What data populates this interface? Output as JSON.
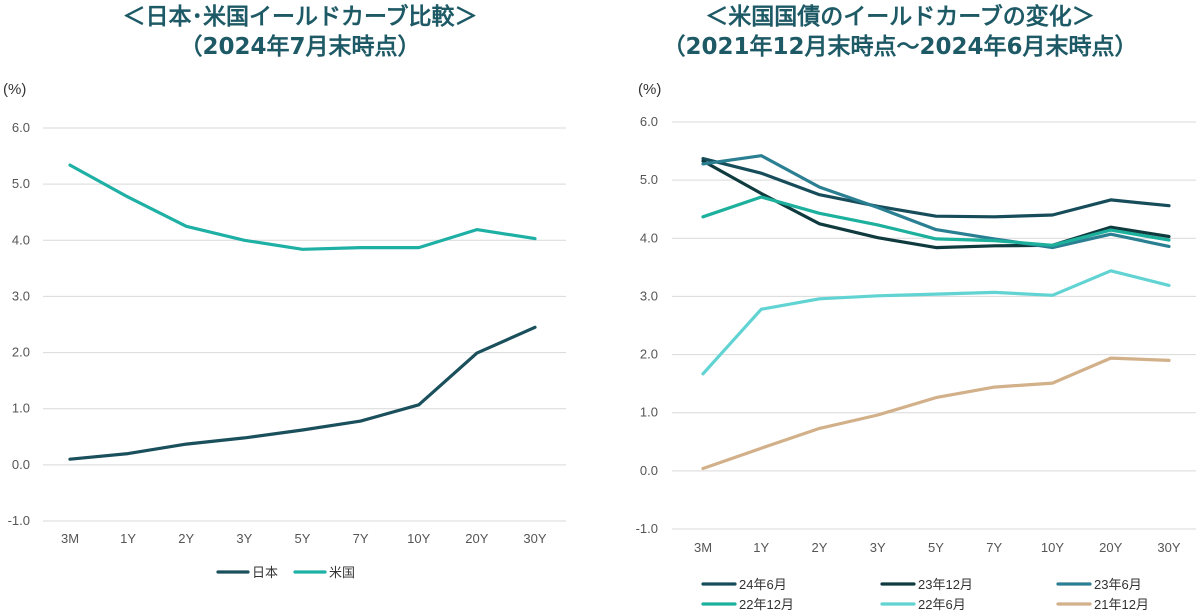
{
  "chart_data": [
    {
      "type": "line",
      "title_line1": "＜日本･米国イールドカーブ比較＞",
      "title_line2": "（2024年7月末時点）",
      "unit": "(%)",
      "categories": [
        "3M",
        "1Y",
        "2Y",
        "3Y",
        "5Y",
        "7Y",
        "10Y",
        "20Y",
        "30Y"
      ],
      "ylim": [
        -1.0,
        6.0
      ],
      "yticks": [
        "-1.0",
        "0.0",
        "1.0",
        "2.0",
        "3.0",
        "4.0",
        "5.0",
        "6.0"
      ],
      "grid": true,
      "legend_position": "bottom",
      "series": [
        {
          "name": "日本",
          "color": "#1a4f5c",
          "values": [
            0.1,
            0.2,
            0.37,
            0.48,
            0.62,
            0.78,
            1.07,
            1.99,
            2.45
          ]
        },
        {
          "name": "米国",
          "color": "#1fb0a5",
          "values": [
            5.34,
            4.77,
            4.25,
            4.0,
            3.84,
            3.87,
            3.87,
            4.19,
            4.03
          ]
        }
      ]
    },
    {
      "type": "line",
      "title_line1": "＜米国国債のイールドカーブの変化＞",
      "title_line2": "（2021年12月末時点～2024年6月末時点）",
      "unit": "(%)",
      "categories": [
        "3M",
        "1Y",
        "2Y",
        "3Y",
        "5Y",
        "7Y",
        "10Y",
        "20Y",
        "30Y"
      ],
      "ylim": [
        -1.0,
        6.0
      ],
      "yticks": [
        "-1.0",
        "0.0",
        "1.0",
        "2.0",
        "3.0",
        "4.0",
        "5.0",
        "6.0"
      ],
      "grid": true,
      "legend_position": "bottom",
      "series": [
        {
          "name": "24年6月",
          "color": "#174d5a",
          "values": [
            5.37,
            5.12,
            4.75,
            4.55,
            4.38,
            4.37,
            4.4,
            4.66,
            4.56
          ]
        },
        {
          "name": "23年12月",
          "color": "#0f3a3e",
          "values": [
            5.33,
            4.77,
            4.25,
            4.01,
            3.84,
            3.87,
            3.88,
            4.19,
            4.03
          ]
        },
        {
          "name": "23年6月",
          "color": "#2a7f92",
          "values": [
            5.28,
            5.42,
            4.88,
            4.53,
            4.15,
            3.99,
            3.84,
            4.07,
            3.86
          ]
        },
        {
          "name": "22年12月",
          "color": "#1cb09d",
          "values": [
            4.37,
            4.71,
            4.43,
            4.23,
            3.99,
            3.96,
            3.88,
            4.14,
            3.97
          ]
        },
        {
          "name": "22年6月",
          "color": "#62d3d3",
          "values": [
            1.67,
            2.78,
            2.96,
            3.01,
            3.04,
            3.07,
            3.02,
            3.44,
            3.19
          ]
        },
        {
          "name": "21年12月",
          "color": "#d2b089",
          "values": [
            0.04,
            0.39,
            0.73,
            0.96,
            1.26,
            1.44,
            1.51,
            1.94,
            1.9
          ]
        }
      ]
    }
  ]
}
